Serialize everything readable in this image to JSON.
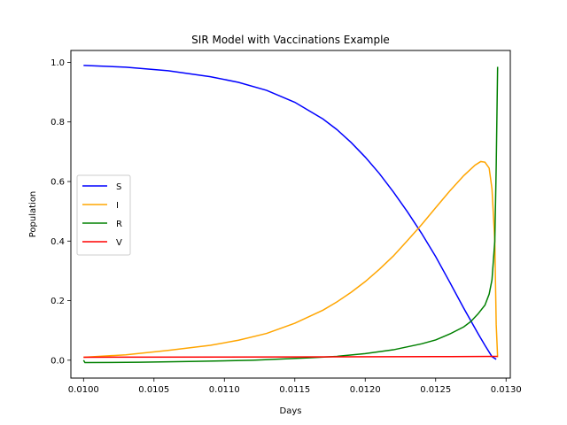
{
  "chart_data": {
    "type": "line",
    "title": "SIR Model with Vaccinations Example",
    "xlabel": "Days",
    "ylabel": "Population",
    "xlim": [
      0.00991,
      0.01303
    ],
    "ylim": [
      -0.06,
      1.04
    ],
    "xticks": [
      0.01,
      0.0105,
      0.011,
      0.0115,
      0.012,
      0.0125,
      0.013
    ],
    "xtick_labels": [
      "0.0100",
      "0.0105",
      "0.0110",
      "0.0115",
      "0.0120",
      "0.0125",
      "0.0130"
    ],
    "yticks": [
      0.0,
      0.2,
      0.4,
      0.6,
      0.8,
      1.0
    ],
    "ytick_labels": [
      "0.0",
      "0.2",
      "0.4",
      "0.6",
      "0.8",
      "1.0"
    ],
    "grid": false,
    "legend_position": "center-left",
    "series": [
      {
        "name": "S",
        "color": "#0000ff",
        "points": [
          [
            0.01,
            0.99
          ],
          [
            0.0103,
            0.984
          ],
          [
            0.0106,
            0.972
          ],
          [
            0.0109,
            0.952
          ],
          [
            0.0111,
            0.933
          ],
          [
            0.0113,
            0.906
          ],
          [
            0.0115,
            0.866
          ],
          [
            0.0117,
            0.81
          ],
          [
            0.0118,
            0.774
          ],
          [
            0.0119,
            0.731
          ],
          [
            0.012,
            0.682
          ],
          [
            0.0121,
            0.627
          ],
          [
            0.0122,
            0.565
          ],
          [
            0.0123,
            0.498
          ],
          [
            0.0124,
            0.426
          ],
          [
            0.0125,
            0.348
          ],
          [
            0.0126,
            0.262
          ],
          [
            0.0127,
            0.174
          ],
          [
            0.0128,
            0.09
          ],
          [
            0.01285,
            0.05
          ],
          [
            0.0129,
            0.012
          ],
          [
            0.01293,
            0.003
          ]
        ]
      },
      {
        "name": "I",
        "color": "#ffa500",
        "points": [
          [
            0.01,
            0.01
          ],
          [
            0.0103,
            0.018
          ],
          [
            0.0106,
            0.033
          ],
          [
            0.0109,
            0.05
          ],
          [
            0.0111,
            0.067
          ],
          [
            0.0113,
            0.09
          ],
          [
            0.0115,
            0.124
          ],
          [
            0.0117,
            0.168
          ],
          [
            0.0118,
            0.196
          ],
          [
            0.0119,
            0.228
          ],
          [
            0.012,
            0.264
          ],
          [
            0.0121,
            0.305
          ],
          [
            0.0122,
            0.35
          ],
          [
            0.0123,
            0.402
          ],
          [
            0.0124,
            0.455
          ],
          [
            0.0125,
            0.512
          ],
          [
            0.0126,
            0.568
          ],
          [
            0.0127,
            0.62
          ],
          [
            0.01278,
            0.655
          ],
          [
            0.01282,
            0.667
          ],
          [
            0.01285,
            0.665
          ],
          [
            0.01288,
            0.645
          ],
          [
            0.0129,
            0.575
          ],
          [
            0.01292,
            0.4
          ],
          [
            0.01293,
            0.12
          ],
          [
            0.01294,
            0.01
          ]
        ]
      },
      {
        "name": "R",
        "color": "#008000",
        "points": [
          [
            0.01,
            0.0
          ],
          [
            0.01001,
            -0.008
          ],
          [
            0.0104,
            -0.007
          ],
          [
            0.0108,
            -0.004
          ],
          [
            0.0112,
            0.0
          ],
          [
            0.0116,
            0.008
          ],
          [
            0.0118,
            0.013
          ],
          [
            0.012,
            0.022
          ],
          [
            0.0122,
            0.035
          ],
          [
            0.0124,
            0.055
          ],
          [
            0.0125,
            0.068
          ],
          [
            0.0126,
            0.088
          ],
          [
            0.0127,
            0.112
          ],
          [
            0.01275,
            0.13
          ],
          [
            0.0128,
            0.155
          ],
          [
            0.01285,
            0.185
          ],
          [
            0.01288,
            0.222
          ],
          [
            0.0129,
            0.27
          ],
          [
            0.01292,
            0.4
          ],
          [
            0.01293,
            0.65
          ],
          [
            0.01294,
            0.985
          ]
        ]
      },
      {
        "name": "V",
        "color": "#ff0000",
        "points": [
          [
            0.01,
            0.01
          ],
          [
            0.0115,
            0.011
          ],
          [
            0.0125,
            0.012
          ],
          [
            0.01294,
            0.013
          ]
        ]
      }
    ]
  }
}
